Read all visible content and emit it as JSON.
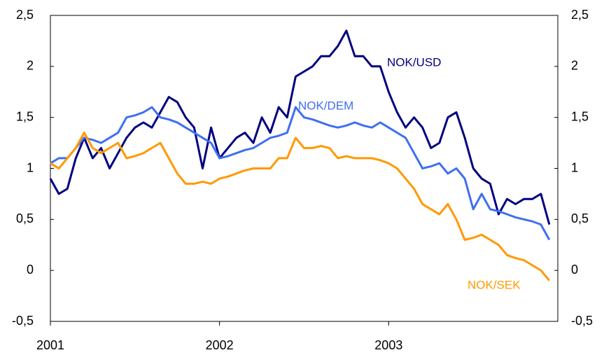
{
  "chart_data": {
    "type": "line",
    "x": [
      2001.0,
      2001.05,
      2001.1,
      2001.15,
      2001.2,
      2001.25,
      2001.3,
      2001.35,
      2001.4,
      2001.45,
      2001.5,
      2001.55,
      2001.6,
      2001.65,
      2001.7,
      2001.75,
      2001.8,
      2001.85,
      2001.9,
      2001.95,
      2002.0,
      2002.05,
      2002.1,
      2002.15,
      2002.2,
      2002.25,
      2002.3,
      2002.35,
      2002.4,
      2002.45,
      2002.5,
      2002.55,
      2002.6,
      2002.65,
      2002.7,
      2002.75,
      2002.8,
      2002.85,
      2002.9,
      2002.95,
      2003.0,
      2003.05,
      2003.1,
      2003.15,
      2003.2,
      2003.25,
      2003.3,
      2003.35,
      2003.4,
      2003.45,
      2003.5,
      2003.55,
      2003.6,
      2003.65,
      2003.7,
      2003.75,
      2003.8,
      2003.85,
      2003.9,
      2003.95
    ],
    "series": [
      {
        "name": "NOK/USD",
        "color": "#000080",
        "values": [
          0.9,
          0.75,
          0.8,
          1.1,
          1.3,
          1.1,
          1.2,
          1.0,
          1.15,
          1.3,
          1.4,
          1.45,
          1.4,
          1.55,
          1.7,
          1.65,
          1.5,
          1.4,
          1.0,
          1.4,
          1.1,
          1.2,
          1.3,
          1.35,
          1.25,
          1.5,
          1.35,
          1.6,
          1.5,
          1.9,
          1.95,
          2.0,
          2.1,
          2.1,
          2.2,
          2.35,
          2.1,
          2.1,
          2.0,
          2.0,
          1.75,
          1.55,
          1.4,
          1.5,
          1.4,
          1.2,
          1.25,
          1.5,
          1.55,
          1.3,
          1.0,
          0.9,
          0.85,
          0.55,
          0.7,
          0.65,
          0.7,
          0.7,
          0.75,
          0.45
        ]
      },
      {
        "name": "NOK/DEM",
        "color": "#3f6ff0",
        "values": [
          1.05,
          1.1,
          1.1,
          1.2,
          1.3,
          1.28,
          1.25,
          1.3,
          1.35,
          1.5,
          1.52,
          1.55,
          1.6,
          1.5,
          1.48,
          1.45,
          1.4,
          1.35,
          1.3,
          1.25,
          1.1,
          1.12,
          1.15,
          1.18,
          1.2,
          1.25,
          1.3,
          1.32,
          1.35,
          1.6,
          1.5,
          1.48,
          1.45,
          1.42,
          1.4,
          1.42,
          1.45,
          1.42,
          1.4,
          1.45,
          1.4,
          1.35,
          1.3,
          1.15,
          1.0,
          1.02,
          1.05,
          0.95,
          1.0,
          0.9,
          0.6,
          0.75,
          0.6,
          0.58,
          0.55,
          0.52,
          0.5,
          0.48,
          0.45,
          0.3
        ]
      },
      {
        "name": "NOK/SEK",
        "color": "#ff9900",
        "values": [
          1.05,
          1.0,
          1.1,
          1.2,
          1.35,
          1.2,
          1.15,
          1.2,
          1.25,
          1.1,
          1.12,
          1.15,
          1.2,
          1.25,
          1.1,
          0.95,
          0.85,
          0.85,
          0.87,
          0.85,
          0.9,
          0.92,
          0.95,
          0.98,
          1.0,
          1.0,
          1.0,
          1.1,
          1.1,
          1.3,
          1.2,
          1.2,
          1.22,
          1.2,
          1.1,
          1.12,
          1.1,
          1.1,
          1.1,
          1.08,
          1.05,
          1.0,
          0.9,
          0.8,
          0.65,
          0.6,
          0.55,
          0.65,
          0.5,
          0.3,
          0.32,
          0.35,
          0.3,
          0.25,
          0.15,
          0.12,
          0.1,
          0.05,
          0.0,
          -0.1
        ]
      }
    ],
    "xlim": [
      2001,
      2004
    ],
    "xticks": [
      2001,
      2002,
      2003
    ],
    "ylim": [
      -0.5,
      2.5
    ],
    "yticks": [
      {
        "value": -0.5,
        "label": "-0,5"
      },
      0,
      {
        "value": 0.5,
        "label": "0,5"
      },
      1,
      {
        "value": 1.5,
        "label": "1,5"
      },
      2,
      {
        "value": 2.5,
        "label": "2,5"
      }
    ],
    "y2lim": [
      -0.5,
      2.5
    ],
    "y2ticks": [
      {
        "value": -0.5,
        "label": "-0,5"
      },
      0,
      {
        "value": 0.5,
        "label": "0,5"
      },
      1,
      {
        "value": 1.5,
        "label": "1,5"
      },
      2,
      {
        "value": 2.5,
        "label": "2,5"
      }
    ],
    "grid": false
  }
}
